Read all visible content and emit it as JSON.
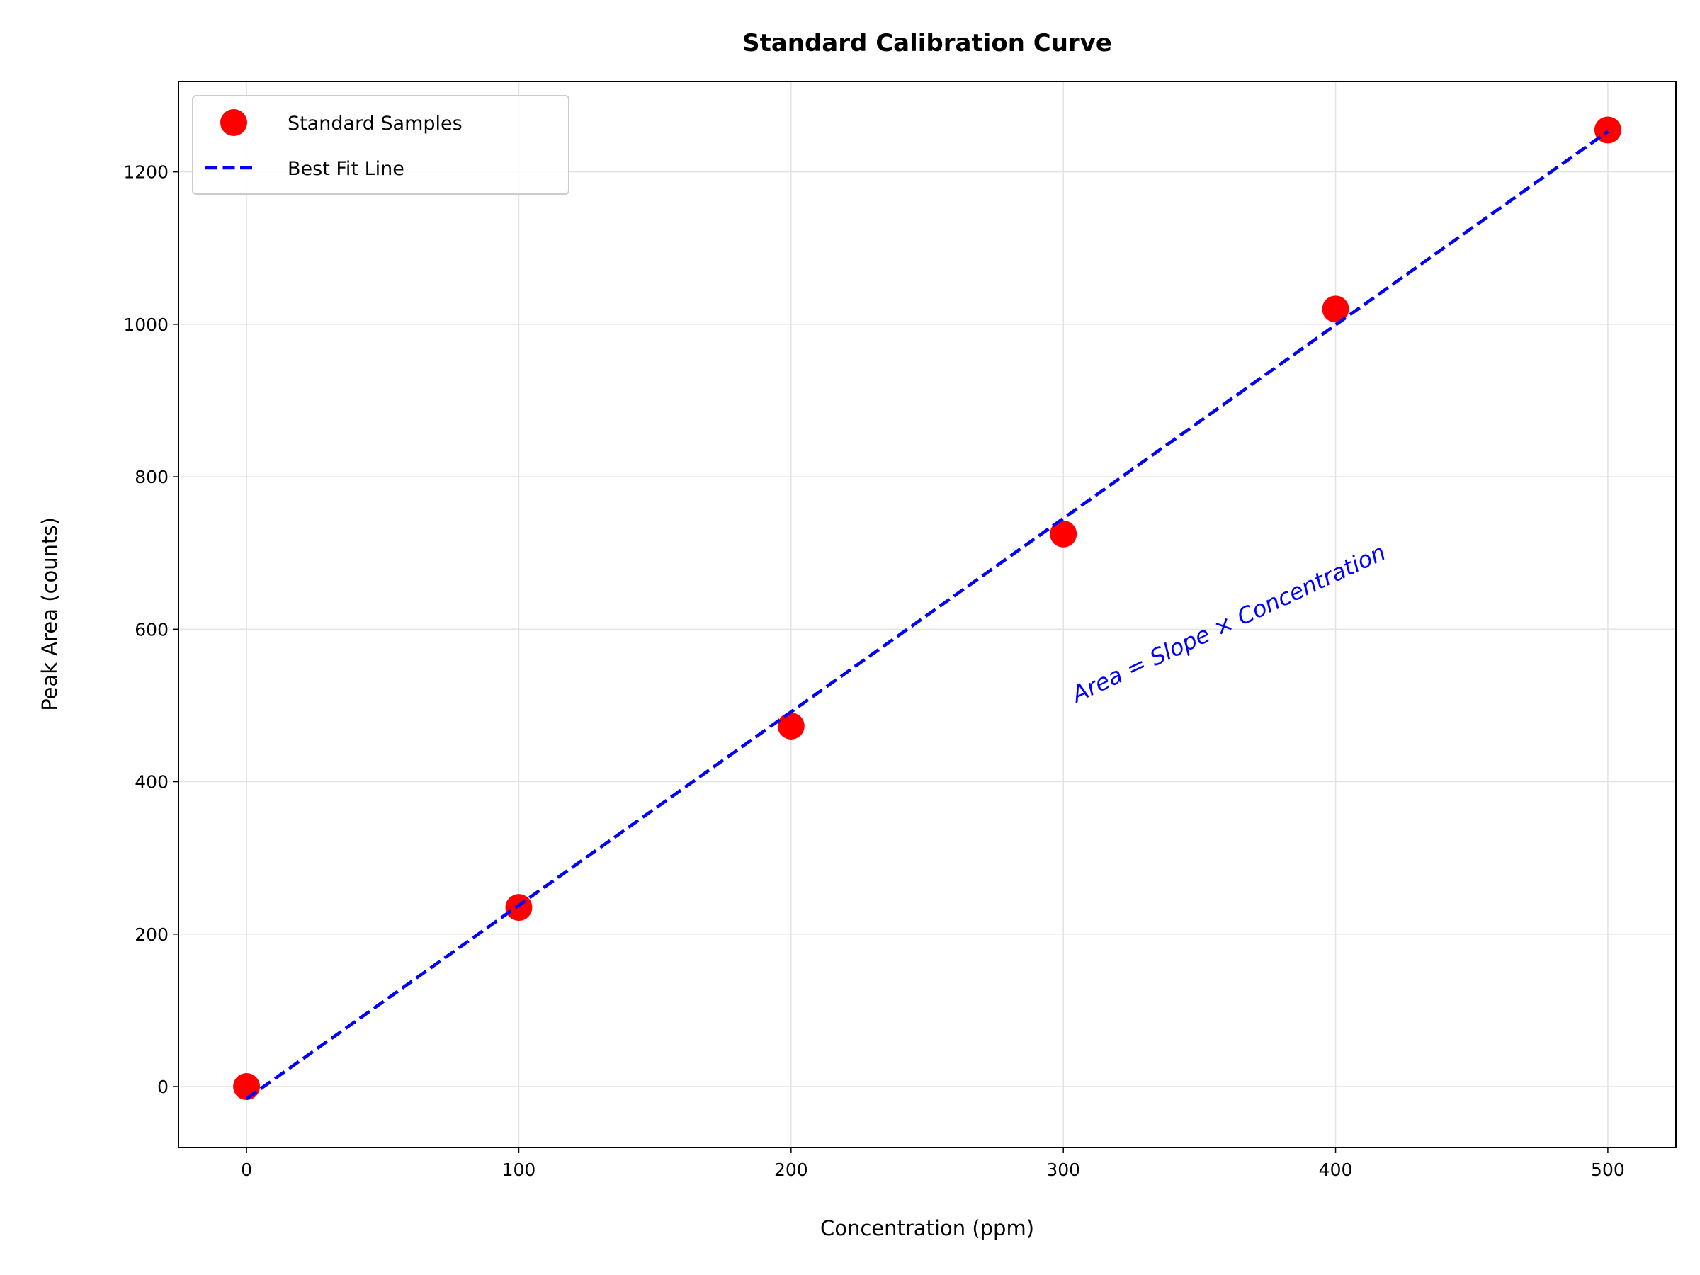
{
  "chart_data": {
    "type": "scatter",
    "title": "Standard Calibration Curve",
    "x_label": "Concentration (ppm)",
    "y_label": "Peak Area (counts)",
    "annotation": "Area = Slope × Concentration",
    "annotation_color": "#0000ff",
    "series": [
      {
        "name": "Standard Samples",
        "color": "#ff0000",
        "type": "scatter",
        "x": [
          0,
          100,
          200,
          300,
          400,
          500
        ],
        "values": [
          0,
          235,
          473,
          725,
          1020,
          1255
        ]
      },
      {
        "name": "Best Fit Line",
        "color": "#0000ff",
        "type": "line",
        "style": "dashed",
        "x": [
          0,
          500
        ],
        "values": [
          -16,
          1253
        ]
      }
    ],
    "xlim": [
      -25,
      525
    ],
    "xticks": [
      0,
      100,
      200,
      300,
      400,
      500
    ],
    "ylim": [
      -79.9,
      1318.6
    ],
    "yticks": [
      0,
      200,
      400,
      600,
      800,
      1000,
      1200
    ],
    "grid": true,
    "legend": "upper left"
  }
}
